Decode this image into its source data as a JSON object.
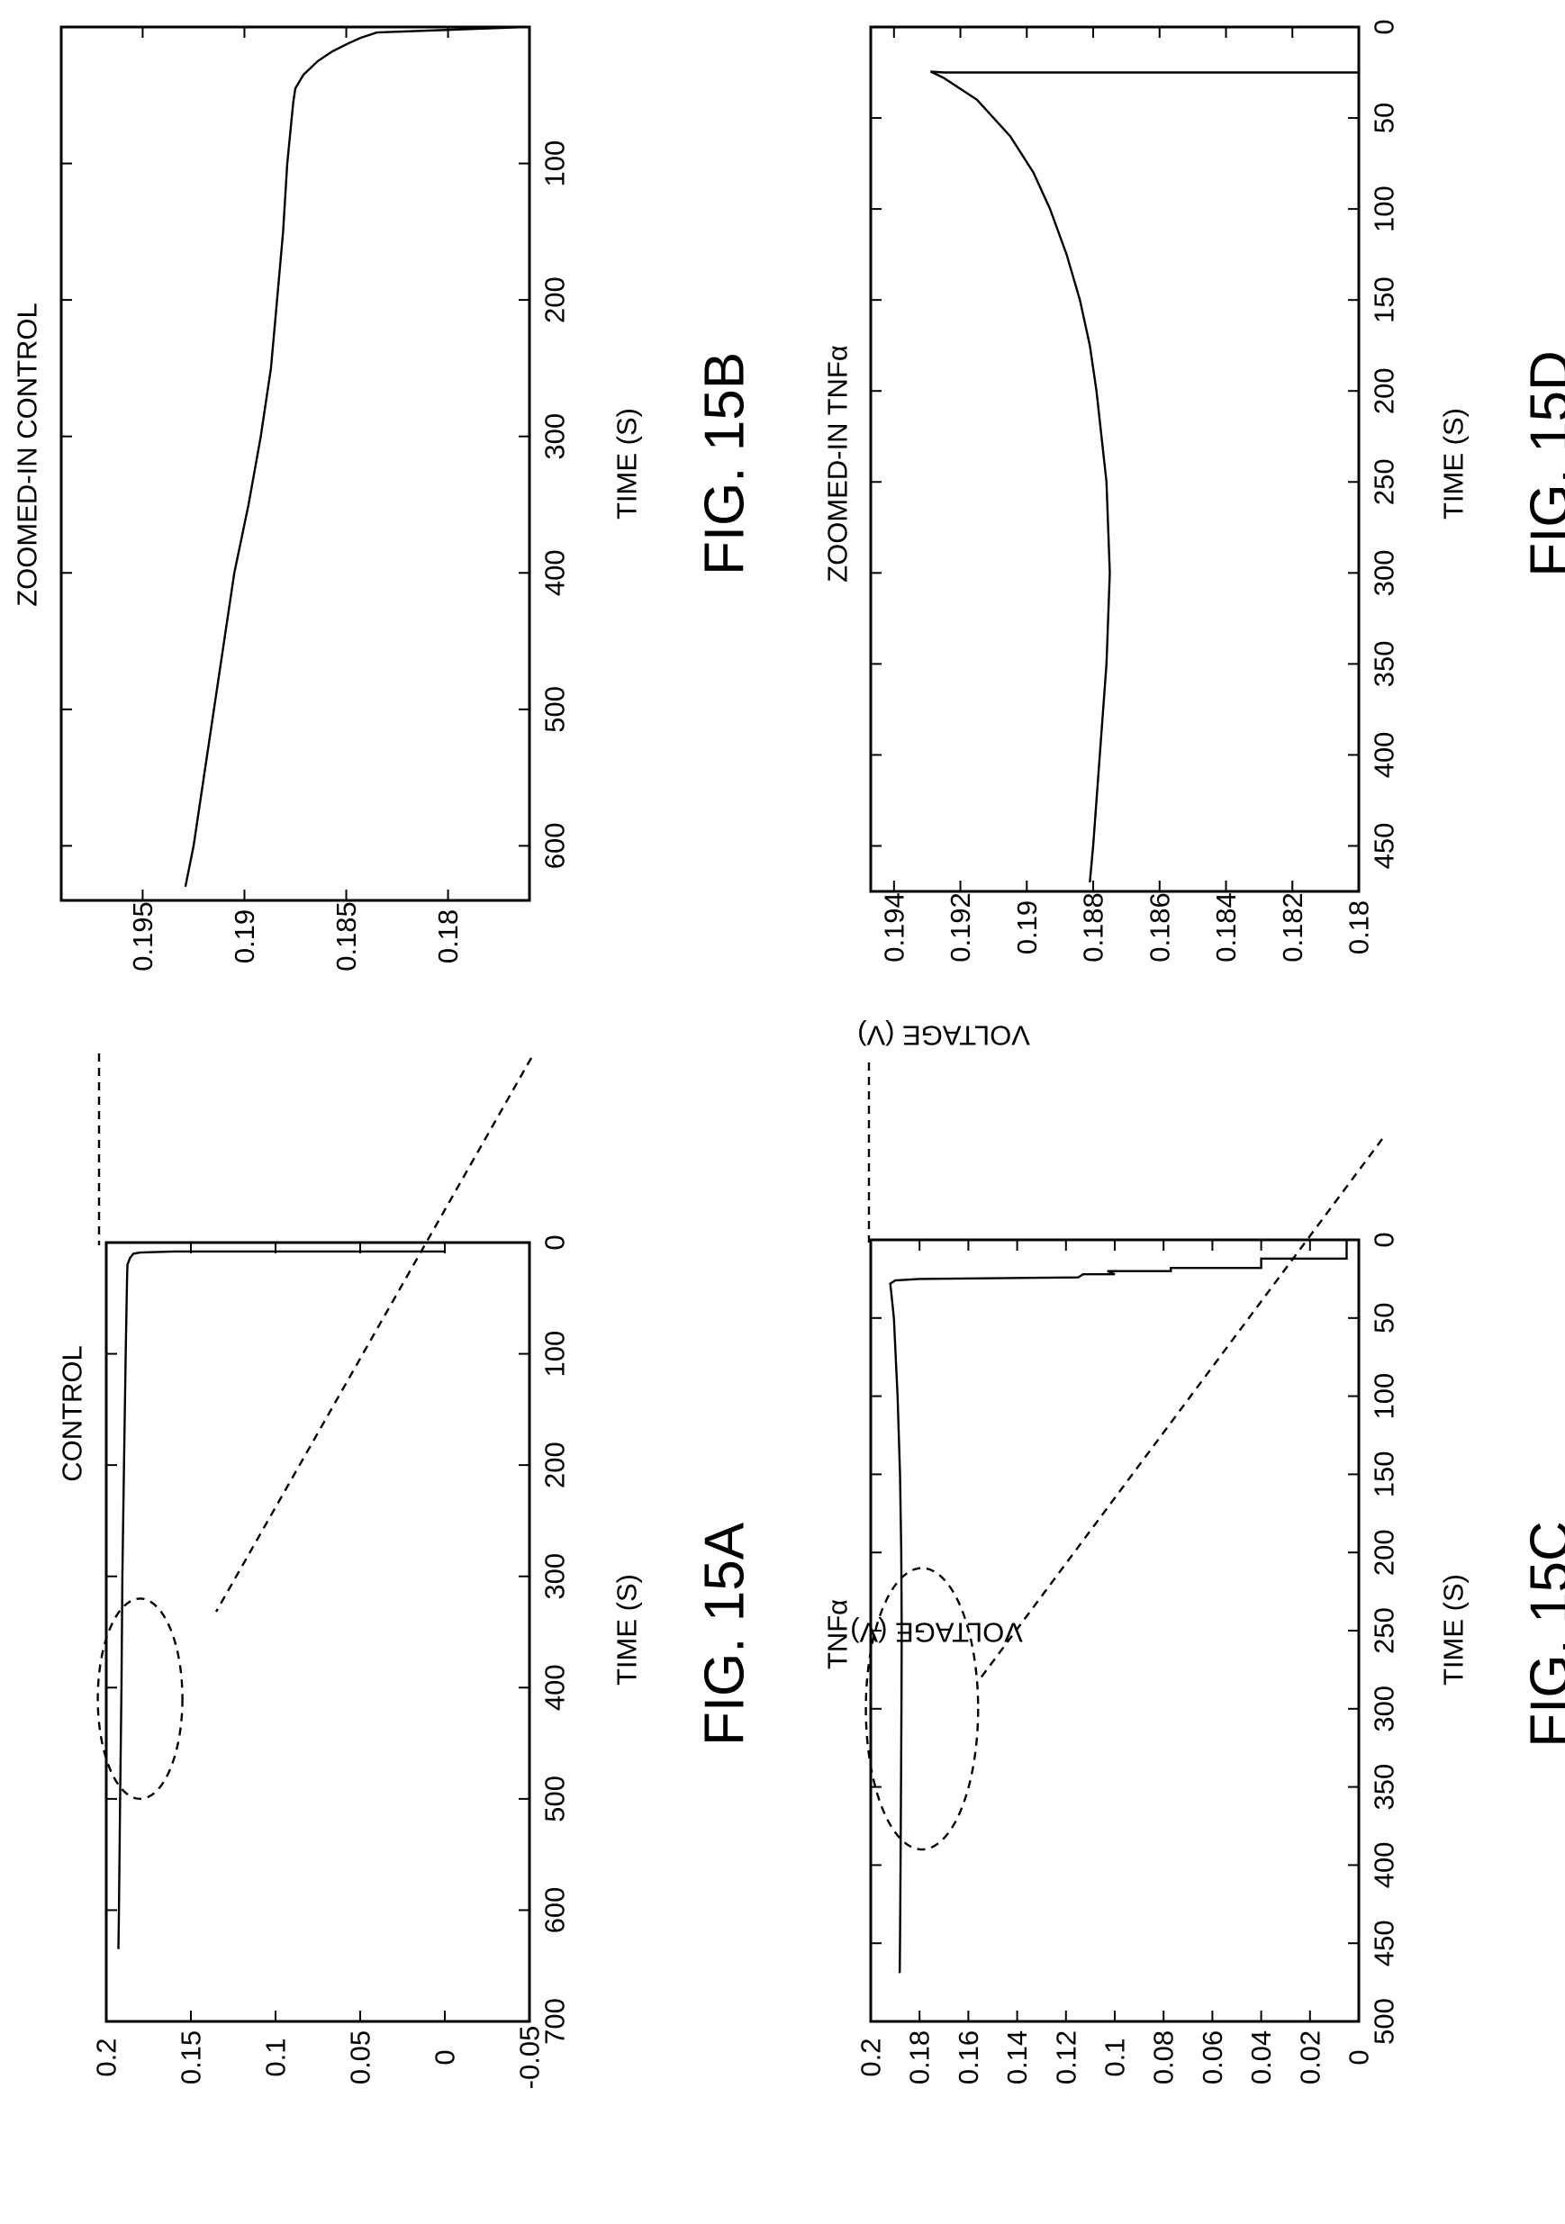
{
  "figures": [
    {
      "id": "15A",
      "fig_label": "FIG. 15A",
      "chart_data": {
        "type": "line",
        "title": "CONTROL",
        "xlabel": "TIME (S)",
        "ylabel": "VOLTAGE (V)",
        "xlim": [
          0,
          700
        ],
        "ylim": [
          -0.05,
          0.2
        ],
        "x_ticks": [
          0,
          100,
          200,
          300,
          400,
          500,
          600,
          700
        ],
        "x_tick_labels": [
          "0",
          "100",
          "200",
          "300",
          "400",
          "500",
          "600",
          "700"
        ],
        "y_ticks": [
          0.2,
          0.15,
          0.1,
          0.05,
          0,
          -0.05
        ],
        "y_tick_labels": [
          "0.2",
          "0.15",
          "0.1",
          "0.05",
          "0",
          "-0.05"
        ],
        "series": [
          {
            "x": [
              8,
              8,
              9,
              10,
              14,
              20,
              40,
              100,
              200,
              300,
              400,
              500,
              600,
              635
            ],
            "y": [
              0,
              0.16,
              0.18,
              0.184,
              0.186,
              0.1875,
              0.1878,
              0.1885,
              0.1895,
              0.1905,
              0.191,
              0.1918,
              0.1925,
              0.1928
            ]
          }
        ],
        "annotations": [
          {
            "type": "ellipse",
            "cx": 410,
            "cy": 0.18,
            "rx": 90,
            "ry": 0.025,
            "angle": -90
          }
        ]
      }
    },
    {
      "id": "15B",
      "fig_label": "FIG. 15B",
      "chart_data": {
        "type": "line",
        "title": "ZOOMED-IN CONTROL",
        "xlabel": "TIME (S)",
        "ylabel": "VOLTAGE (V)",
        "xlim": [
          0,
          640
        ],
        "ylim": [
          0.176,
          0.199
        ],
        "x_ticks": [
          100,
          200,
          300,
          400,
          500,
          600
        ],
        "x_tick_labels": [
          "100",
          "200",
          "300",
          "400",
          "500",
          "600"
        ],
        "y_ticks": [
          0.195,
          0.19,
          0.185,
          0.18
        ],
        "y_tick_labels": [
          "0.195",
          "0.19",
          "0.185",
          "0.18"
        ],
        "series": [
          {
            "x": [
              0,
              4,
              8,
              12,
              18,
              25,
              35,
              45,
              55,
              100,
              150,
              200,
              250,
              300,
              350,
              400,
              450,
              500,
              550,
              600,
              630
            ],
            "y": [
              0.1762,
              0.1835,
              0.1843,
              0.1849,
              0.1857,
              0.1864,
              0.1871,
              0.1875,
              0.1876,
              0.1879,
              0.1881,
              0.1884,
              0.1887,
              0.1892,
              0.1898,
              0.1905,
              0.191,
              0.1915,
              0.192,
              0.1925,
              0.1929
            ]
          }
        ]
      }
    },
    {
      "id": "15C",
      "fig_label": "FIG. 15C",
      "chart_data": {
        "type": "line",
        "title": "TNFα",
        "xlabel": "TIME (S)",
        "ylabel": "VOLTAGE (V)",
        "xlim": [
          0,
          500
        ],
        "ylim": [
          0,
          0.2
        ],
        "x_ticks": [
          0,
          50,
          100,
          150,
          200,
          250,
          300,
          350,
          400,
          450,
          500
        ],
        "x_tick_labels": [
          "0",
          "50",
          "100",
          "150",
          "200",
          "250",
          "300",
          "350",
          "400",
          "450",
          "500"
        ],
        "y_ticks": [
          0.2,
          0.18,
          0.16,
          0.14,
          0.12,
          0.1,
          0.08,
          0.06,
          0.04,
          0.02,
          0
        ],
        "y_tick_labels": [
          "0.2",
          "0.18",
          "0.16",
          "0.14",
          "0.12",
          "0.1",
          "0.08",
          "0.06",
          "0.04",
          "0.02",
          "0"
        ],
        "series": [
          {
            "x": [
              0,
              12,
              12,
              18,
              18,
              20,
              20,
              22,
              22,
              24,
              25,
              26,
              28,
              35,
              50,
              100,
              150,
              200,
              250,
              300,
              350,
              400,
              450,
              469
            ],
            "y": [
              0.005,
              0.005,
              0.04,
              0.04,
              0.077,
              0.077,
              0.103,
              0.1,
              0.113,
              0.115,
              0.18,
              0.19,
              0.192,
              0.1915,
              0.1905,
              0.189,
              0.188,
              0.1875,
              0.1873,
              0.1874,
              0.1876,
              0.1878,
              0.188,
              0.1881
            ]
          }
        ],
        "annotations": [
          {
            "type": "ellipse",
            "cx": 300,
            "cy": 0.179,
            "rx": 90,
            "ry": 0.023,
            "angle": -90
          }
        ]
      }
    },
    {
      "id": "15D",
      "fig_label": "FIG. 15D",
      "chart_data": {
        "type": "line",
        "title": "ZOOMED-IN TNFα",
        "xlabel": "TIME (S)",
        "ylabel": "VOLTAGE (V)",
        "xlim": [
          0,
          475
        ],
        "ylim": [
          0.18,
          0.1947
        ],
        "x_ticks": [
          0,
          50,
          100,
          150,
          200,
          250,
          300,
          350,
          400,
          450
        ],
        "x_tick_labels": [
          "0",
          "50",
          "100",
          "150",
          "200",
          "250",
          "300",
          "350",
          "400",
          "450"
        ],
        "y_ticks": [
          0.194,
          0.192,
          0.19,
          0.188,
          0.186,
          0.184,
          0.182,
          0.18
        ],
        "y_tick_labels": [
          "0.194",
          "0.192",
          "0.19",
          "0.188",
          "0.186",
          "0.184",
          "0.182",
          "0.18"
        ],
        "series": [
          {
            "x": [
              25,
              25,
              24.5,
              28,
              40,
              60,
              80,
              100,
              125,
              150,
              175,
              200,
              250,
              300,
              350,
              400,
              450,
              470
            ],
            "y": [
              0.18,
              0.1925,
              0.1929,
              0.1925,
              0.1915,
              0.1905,
              0.1898,
              0.1893,
              0.1888,
              0.1884,
              0.1881,
              0.1879,
              0.1876,
              0.1875,
              0.1876,
              0.1878,
              0.188,
              0.1881
            ]
          }
        ]
      }
    }
  ]
}
